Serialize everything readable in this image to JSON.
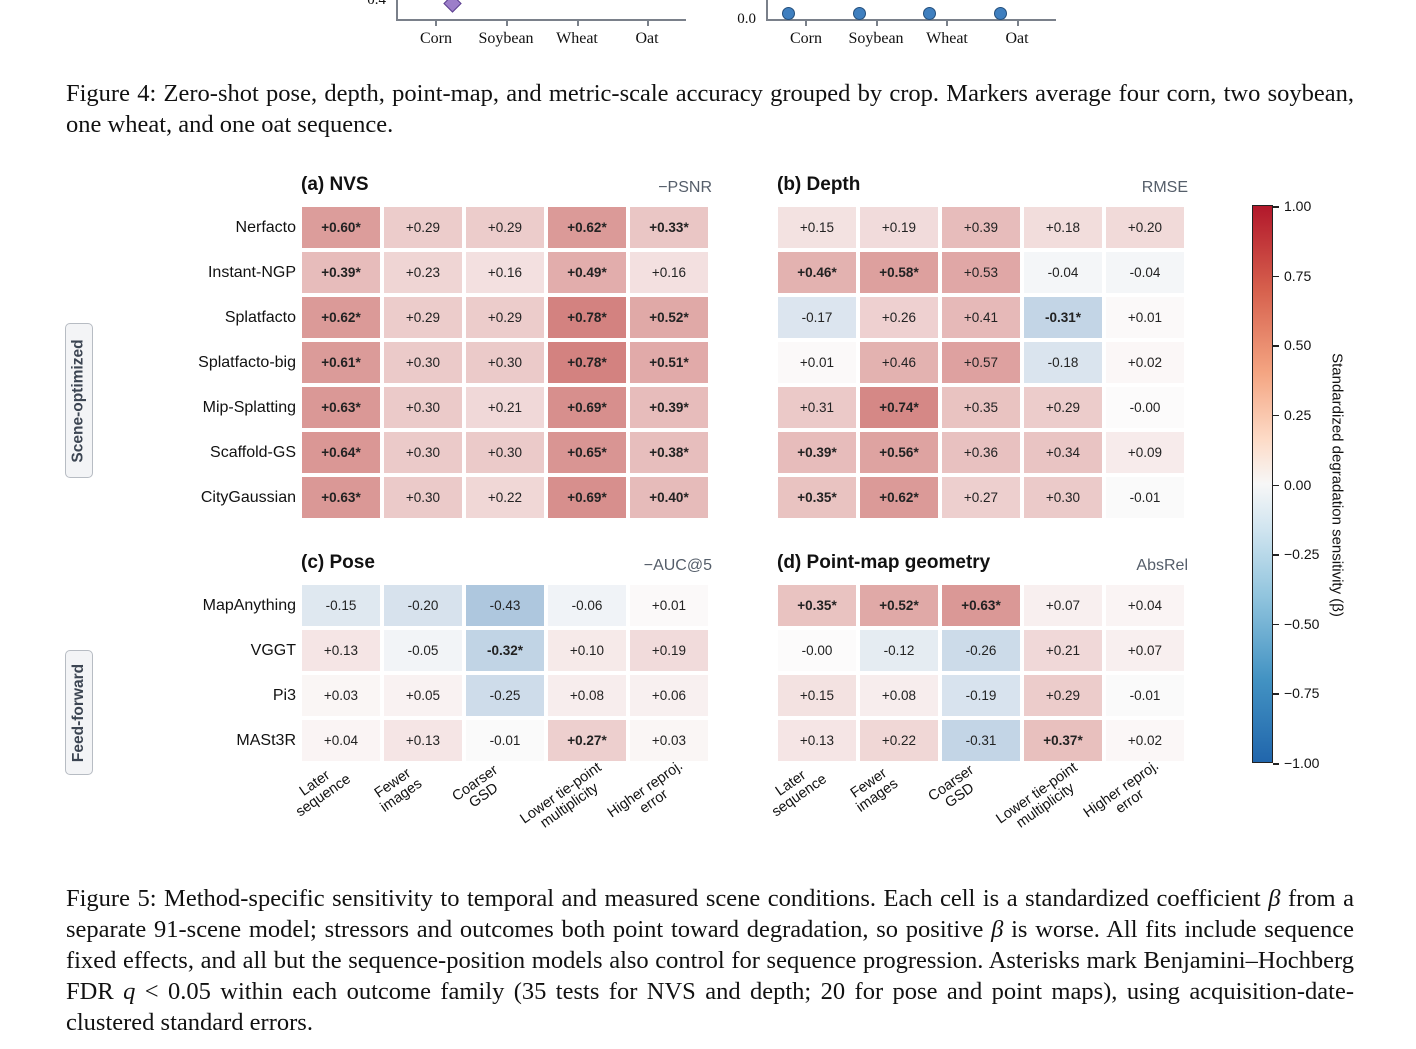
{
  "top_charts": {
    "left": {
      "y_tick_label": "0.4",
      "categories": [
        "Corn",
        "Soybean",
        "Wheat",
        "Oat"
      ]
    },
    "right": {
      "y_tick_label": "0.0",
      "categories": [
        "Corn",
        "Soybean",
        "Wheat",
        "Oat"
      ]
    }
  },
  "figure4_caption": "Figure 4: Zero-shot pose, depth, point-map, and metric-scale accuracy grouped by crop. Markers average four corn, two soybean, one wheat, and one oat sequence.",
  "groups": {
    "scene_optimized": "Scene-optimized",
    "feed_forward": "Feed-forward"
  },
  "column_labels": [
    "Later\nsequence",
    "Fewer\nimages",
    "Coarser\nGSD",
    "Lower tie-point\nmultiplicity",
    "Higher reproj.\nerror"
  ],
  "rows_top": [
    "Nerfacto",
    "Instant-NGP",
    "Splatfacto",
    "Splatfacto-big",
    "Mip-Splatting",
    "Scaffold-GS",
    "CityGaussian"
  ],
  "rows_bottom": [
    "MapAnything",
    "VGGT",
    "Pi3",
    "MASt3R"
  ],
  "panels": {
    "a": {
      "title": "(a) NVS",
      "metric": "−PSNR",
      "cells": [
        [
          "+0.60*",
          "+0.29",
          "+0.29",
          "+0.62*",
          "+0.33*"
        ],
        [
          "+0.39*",
          "+0.23",
          "+0.16",
          "+0.49*",
          "+0.16"
        ],
        [
          "+0.62*",
          "+0.29",
          "+0.29",
          "+0.78*",
          "+0.52*"
        ],
        [
          "+0.61*",
          "+0.30",
          "+0.30",
          "+0.78*",
          "+0.51*"
        ],
        [
          "+0.63*",
          "+0.30",
          "+0.21",
          "+0.69*",
          "+0.39*"
        ],
        [
          "+0.64*",
          "+0.30",
          "+0.30",
          "+0.65*",
          "+0.38*"
        ],
        [
          "+0.63*",
          "+0.30",
          "+0.22",
          "+0.69*",
          "+0.40*"
        ]
      ]
    },
    "b": {
      "title": "(b) Depth",
      "metric": "RMSE",
      "cells": [
        [
          "+0.15",
          "+0.19",
          "+0.39",
          "+0.18",
          "+0.20"
        ],
        [
          "+0.46*",
          "+0.58*",
          "+0.53",
          "-0.04",
          "-0.04"
        ],
        [
          "-0.17",
          "+0.26",
          "+0.41",
          "-0.31*",
          "+0.01"
        ],
        [
          "+0.01",
          "+0.46",
          "+0.57",
          "-0.18",
          "+0.02"
        ],
        [
          "+0.31",
          "+0.74*",
          "+0.35",
          "+0.29",
          "-0.00"
        ],
        [
          "+0.39*",
          "+0.56*",
          "+0.36",
          "+0.34",
          "+0.09"
        ],
        [
          "+0.35*",
          "+0.62*",
          "+0.27",
          "+0.30",
          "-0.01"
        ]
      ]
    },
    "c": {
      "title": "(c) Pose",
      "metric": "−AUC@5",
      "cells": [
        [
          "-0.15",
          "-0.20",
          "-0.43",
          "-0.06",
          "+0.01"
        ],
        [
          "+0.13",
          "-0.05",
          "-0.32*",
          "+0.10",
          "+0.19"
        ],
        [
          "+0.03",
          "+0.05",
          "-0.25",
          "+0.08",
          "+0.06"
        ],
        [
          "+0.04",
          "+0.13",
          "-0.01",
          "+0.27*",
          "+0.03"
        ]
      ]
    },
    "d": {
      "title": "(d) Point-map geometry",
      "metric": "AbsRel",
      "cells": [
        [
          "+0.35*",
          "+0.52*",
          "+0.63*",
          "+0.07",
          "+0.04"
        ],
        [
          "-0.00",
          "-0.12",
          "-0.26",
          "+0.21",
          "+0.07"
        ],
        [
          "+0.15",
          "+0.08",
          "-0.19",
          "+0.29",
          "-0.01"
        ],
        [
          "+0.13",
          "+0.22",
          "-0.31",
          "+0.37*",
          "+0.02"
        ]
      ]
    }
  },
  "colorbar": {
    "title": "Standardized degradation sensitivity (β)",
    "ticks": [
      "1.00",
      "0.75",
      "0.50",
      "0.25",
      "0.00",
      "−0.25",
      "−0.50",
      "−0.75",
      "−1.00"
    ],
    "colors": {
      "max": "#b2182b",
      "mid": "#f7f7f7",
      "min": "#2166ac"
    }
  },
  "figure5_caption_parts": [
    "Figure 5: Method-specific sensitivity to temporal and measured scene conditions. Each cell is a standardized coefficient ",
    "β",
    " from a separate 91-scene model; stressors and outcomes both point toward degradation, so positive ",
    "β",
    " is worse. All fits include sequence fixed effects, and all but the sequence-position models also control for sequence progression. Asterisks mark Benjamini–Hochberg FDR ",
    "q",
    " < 0.05 within each outcome family (35 tests for NVS and depth; 20 for pose and point maps), using acquisition-date-clustered standard errors."
  ]
}
